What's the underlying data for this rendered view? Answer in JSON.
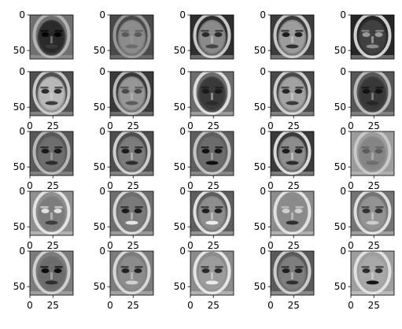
{
  "chart_data": {
    "type": "image_grid",
    "layout": {
      "rows": 5,
      "cols": 5
    },
    "colormap": "gray",
    "panel": {
      "x_range": [
        0,
        47
      ],
      "y_range": [
        0,
        62
      ],
      "y_ticks": [
        0,
        50
      ],
      "x_ticks": [
        0,
        25
      ]
    },
    "x_ticks_visible_rows": [
      2,
      3,
      4,
      5
    ],
    "tick_text": {
      "zero": "0",
      "twenty_five": "25",
      "fifty": "50"
    },
    "panels": [
      {
        "row": 1,
        "col": 1,
        "bg": "#707070",
        "face": "#2a2a2a",
        "rim": "#bdbdbd",
        "eyes": "#050505",
        "mouth": "#3a3a3a"
      },
      {
        "row": 1,
        "col": 2,
        "bg": "#4a4a4a",
        "face": "#8c8c8c",
        "rim": "#a5a5a5",
        "eyes": "#5a5a5a",
        "mouth": "#6c6c6c"
      },
      {
        "row": 1,
        "col": 3,
        "bg": "#2e2e2e",
        "face": "#8a8a8a",
        "rim": "#e2e2e2",
        "eyes": "#2a2a2a",
        "mouth": "#444444"
      },
      {
        "row": 1,
        "col": 4,
        "bg": "#3c3c3c",
        "face": "#9c9c9c",
        "rim": "#dedede",
        "eyes": "#1e1e1e",
        "mouth": "#303030"
      },
      {
        "row": 1,
        "col": 5,
        "bg": "#262626",
        "face": "#404040",
        "rim": "#ededed",
        "eyes": "#9a9a9a",
        "mouth": "#8c8c8c"
      },
      {
        "row": 2,
        "col": 1,
        "bg": "#505050",
        "face": "#b8b8b8",
        "rim": "#dcdcdc",
        "eyes": "#2c2c2c",
        "mouth": "#3c3c3c"
      },
      {
        "row": 2,
        "col": 2,
        "bg": "#3a3a3a",
        "face": "#969696",
        "rim": "#cfcfcf",
        "eyes": "#4a4a4a",
        "mouth": "#5c5c5c"
      },
      {
        "row": 2,
        "col": 3,
        "bg": "#6c6c6c",
        "face": "#3a3a3a",
        "rim": "#f0f0f0",
        "eyes": "#1a1a1a",
        "mouth": "#2a2a2a"
      },
      {
        "row": 2,
        "col": 4,
        "bg": "#494949",
        "face": "#a2a2a2",
        "rim": "#e6e6e6",
        "eyes": "#262626",
        "mouth": "#3a3a3a"
      },
      {
        "row": 2,
        "col": 5,
        "bg": "#575757",
        "face": "#383838",
        "rim": "#cbcbcb",
        "eyes": "#121212",
        "mouth": "#262626"
      },
      {
        "row": 3,
        "col": 1,
        "bg": "#595959",
        "face": "#6e6e6e",
        "rim": "#c8c8c8",
        "eyes": "#191919",
        "mouth": "#2c2c2c"
      },
      {
        "row": 3,
        "col": 2,
        "bg": "#4e4e4e",
        "face": "#7c7c7c",
        "rim": "#e4e4e4",
        "eyes": "#1c1c1c",
        "mouth": "#2e2e2e"
      },
      {
        "row": 3,
        "col": 3,
        "bg": "#5e5e5e",
        "face": "#6c6c6c",
        "rim": "#d5d5d5",
        "eyes": "#111111",
        "mouth": "#101010"
      },
      {
        "row": 3,
        "col": 4,
        "bg": "#3a3a3a",
        "face": "#8d8d8d",
        "rim": "#f6f6f6",
        "eyes": "#1c1c1c",
        "mouth": "#2c2c2c"
      },
      {
        "row": 3,
        "col": 5,
        "bg": "#9c9c9c",
        "face": "#858585",
        "rim": "#d0d0d0",
        "eyes": "#5c5c5c",
        "mouth": "#6c6c6c"
      },
      {
        "row": 4,
        "col": 1,
        "bg": "#8f8f8f",
        "face": "#7c7c7c",
        "rim": "#f2f2f2",
        "eyes": "#e2e2e2",
        "mouth": "#3c3c3c"
      },
      {
        "row": 4,
        "col": 2,
        "bg": "#6e6e6e",
        "face": "#7a7a7a",
        "rim": "#eaeaea",
        "eyes": "#1c1c1c",
        "mouth": "#e6e6e6"
      },
      {
        "row": 4,
        "col": 3,
        "bg": "#5e5e5e",
        "face": "#8e8e8e",
        "rim": "#f7f7f7",
        "eyes": "#202020",
        "mouth": "#eeeeee"
      },
      {
        "row": 4,
        "col": 4,
        "bg": "#8c8c8c",
        "face": "#8a8a8a",
        "rim": "#f0f0f0",
        "eyes": "#cfcfcf",
        "mouth": "#2e2e2e"
      },
      {
        "row": 4,
        "col": 5,
        "bg": "#747474",
        "face": "#939393",
        "rim": "#f2f2f2",
        "eyes": "#323232",
        "mouth": "#cdcdcd"
      },
      {
        "row": 5,
        "col": 1,
        "bg": "#7c7c7c",
        "face": "#6c6c6c",
        "rim": "#dedede",
        "eyes": "#0c0c0c",
        "mouth": "#2e2e2e"
      },
      {
        "row": 5,
        "col": 2,
        "bg": "#7c7c7c",
        "face": "#8c8c8c",
        "rim": "#e8e8e8",
        "eyes": "#222222",
        "mouth": "#d2d2d2"
      },
      {
        "row": 5,
        "col": 3,
        "bg": "#8c8c8c",
        "face": "#9c9c9c",
        "rim": "#f4f4f4",
        "eyes": "#2a2a2a",
        "mouth": "#ececec"
      },
      {
        "row": 5,
        "col": 4,
        "bg": "#5a5a5a",
        "face": "#7e7e7e",
        "rim": "#e0e0e0",
        "eyes": "#202020",
        "mouth": "#303030"
      },
      {
        "row": 5,
        "col": 5,
        "bg": "#9e9e9e",
        "face": "#a8a8a8",
        "rim": "#ececec",
        "eyes": "#2c2c2c",
        "mouth": "#161616"
      }
    ]
  }
}
